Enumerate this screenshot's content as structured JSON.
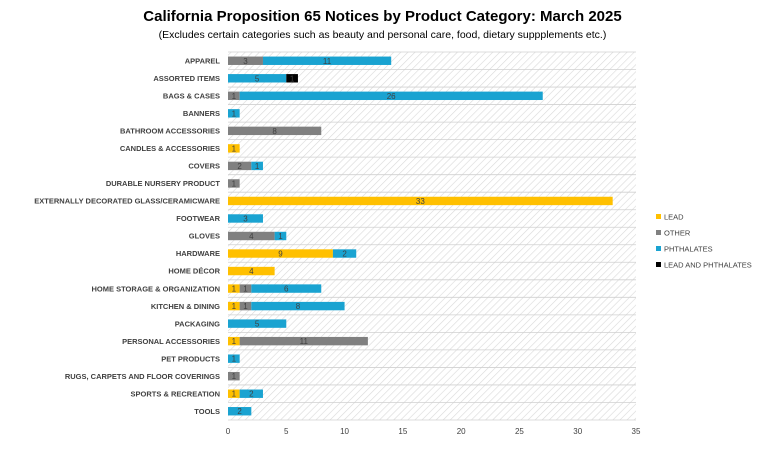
{
  "chart_data": {
    "type": "bar",
    "orientation": "horizontal",
    "stacked": true,
    "title": "California Proposition 65 Notices by Product Category: March 2025",
    "subtitle": "(Excludes certain categories such as beauty and personal care, food, dietary suppplements etc.)",
    "categories": [
      "APPAREL",
      "ASSORTED ITEMS",
      "BAGS & CASES",
      "BANNERS",
      "BATHROOM ACCESSORIES",
      "CANDLES & ACCESSORIES",
      "COVERS",
      "DURABLE NURSERY PRODUCT",
      "EXTERNALLY DECORATED GLASS/CERAMICWARE",
      "FOOTWEAR",
      "GLOVES",
      "HARDWARE",
      "HOME DÉCOR",
      "HOME STORAGE & ORGANIZATION",
      "KITCHEN & DINING",
      "PACKAGING",
      "PERSONAL ACCESSORIES",
      "PET PRODUCTS",
      "RUGS, CARPETS AND FLOOR COVERINGS",
      "SPORTS & RECREATION",
      "TOOLS"
    ],
    "series": [
      {
        "name": "LEAD",
        "color": "#FFC000",
        "values": [
          0,
          0,
          0,
          0,
          0,
          1,
          0,
          0,
          33,
          0,
          0,
          9,
          4,
          1,
          1,
          0,
          1,
          0,
          0,
          1,
          0
        ]
      },
      {
        "name": "OTHER",
        "color": "#808080",
        "values": [
          3,
          0,
          1,
          0,
          8,
          0,
          2,
          1,
          0,
          0,
          4,
          0,
          0,
          1,
          1,
          0,
          11,
          0,
          1,
          0,
          0
        ]
      },
      {
        "name": "PHTHALATES",
        "color": "#1AA3D1",
        "values": [
          11,
          5,
          26,
          1,
          0,
          0,
          1,
          0,
          0,
          3,
          1,
          2,
          0,
          6,
          8,
          5,
          0,
          1,
          0,
          2,
          2
        ]
      },
      {
        "name": "LEAD AND PHTHALATES",
        "color": "#000000",
        "values": [
          0,
          1,
          0,
          0,
          0,
          0,
          0,
          0,
          0,
          0,
          0,
          0,
          0,
          0,
          0,
          0,
          0,
          0,
          0,
          0,
          0
        ]
      }
    ],
    "xlim": [
      0,
      35
    ],
    "xticks": [
      "0",
      "5",
      "10",
      "15",
      "20",
      "25",
      "30",
      "35"
    ],
    "grid": true,
    "legend_position": "right"
  }
}
